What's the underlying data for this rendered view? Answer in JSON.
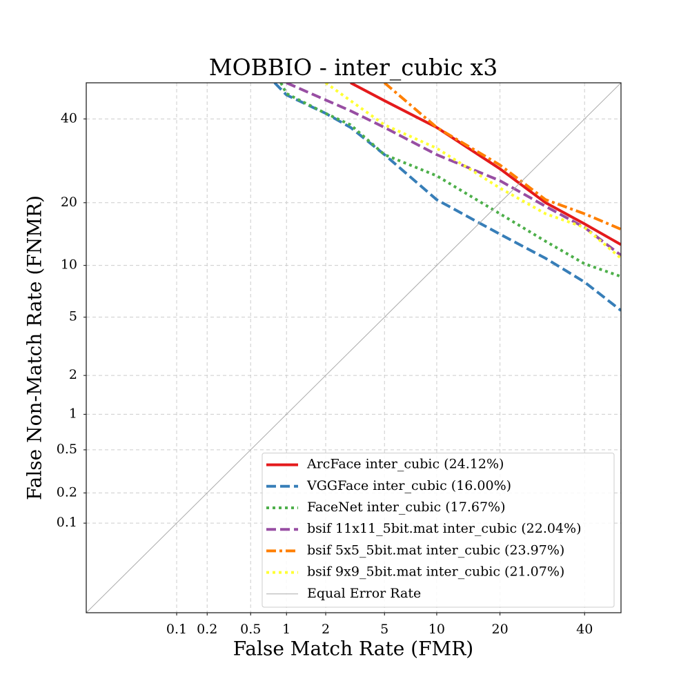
{
  "chart_data": {
    "type": "line",
    "title": "MOBBIO - inter_cubic x3",
    "x_label": "False Match Rate (FMR)",
    "y_label": "False Non-Match Rate (FNMR)",
    "scale": "probit",
    "grid": true,
    "legend": "lower right",
    "xlim": [
      0.01,
      50
    ],
    "ylim": [
      0.01,
      50
    ],
    "xticks": [
      0.1,
      0.2,
      0.5,
      1,
      2,
      5,
      10,
      20,
      40
    ],
    "yticks": [
      0.1,
      0.2,
      0.5,
      1,
      2,
      5,
      10,
      20,
      40
    ],
    "series": [
      {
        "name": "ArcFace inter_cubic (24.12%)",
        "color": "#e41a1c",
        "dash": "solid",
        "x": [
          3,
          5,
          10,
          20,
          30,
          40,
          50
        ],
        "values": [
          50,
          45,
          37.7,
          27.3,
          20,
          16.1,
          12.8
        ]
      },
      {
        "name": "VGGFace inter_cubic (16.00%)",
        "color": "#377eb8",
        "dash": "dashed",
        "x": [
          0.8,
          1,
          2,
          3,
          5,
          10,
          20,
          30,
          40,
          50
        ],
        "values": [
          50,
          46.6,
          41.5,
          37.7,
          30.7,
          20.6,
          14.4,
          10.9,
          8.1,
          5.5
        ]
      },
      {
        "name": "FaceNet inter_cubic (17.67%)",
        "color": "#4daf4a",
        "dash": "dotted",
        "x": [
          0.9,
          1,
          2,
          3,
          5,
          10,
          20,
          30,
          40,
          50
        ],
        "values": [
          50,
          47,
          41.5,
          38.4,
          30.7,
          25.7,
          17.9,
          13.3,
          10.2,
          8.7
        ]
      },
      {
        "name": "bsif 11x11_5bit.mat inter_cubic (22.04%)",
        "color": "#984ea3",
        "dash": "dashed",
        "x": [
          1,
          2,
          3,
          5,
          10,
          20,
          30,
          40,
          50
        ],
        "values": [
          50,
          45.2,
          42.2,
          37.7,
          30.7,
          24.6,
          19.3,
          15.5,
          11.3
        ]
      },
      {
        "name": "bsif 5x5_5bit.mat inter_cubic (23.97%)",
        "color": "#ff7f00",
        "dash": "dashdot",
        "x": [
          5,
          10,
          20,
          30,
          40,
          50
        ],
        "values": [
          50,
          37.7,
          28.2,
          20.6,
          17.9,
          15.2
        ]
      },
      {
        "name": "bsif 9x9_5bit.mat inter_cubic (21.07%)",
        "color": "#ffff33",
        "dash": "dotted",
        "x": [
          2,
          3,
          5,
          10,
          20,
          30,
          40,
          50
        ],
        "values": [
          50,
          45,
          38.4,
          32.3,
          23,
          17.9,
          15.5,
          10.9
        ]
      },
      {
        "name": "Equal Error Rate",
        "color": "#aaaaaa",
        "dash": "thin",
        "x": [
          0.01,
          50
        ],
        "values": [
          0.01,
          50
        ]
      }
    ]
  }
}
